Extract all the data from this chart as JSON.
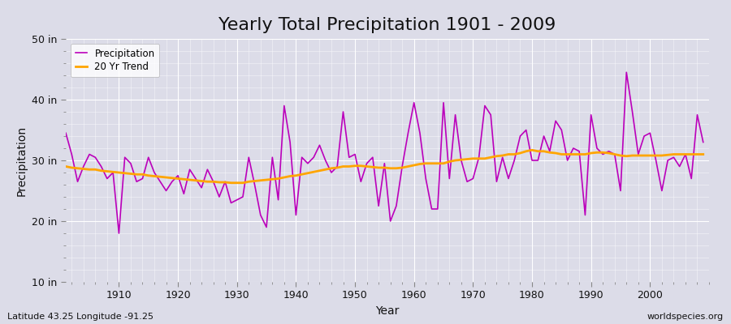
{
  "title": "Yearly Total Precipitation 1901 - 2009",
  "xlabel": "Year",
  "ylabel": "Precipitation",
  "subtitle": "Latitude 43.25 Longitude -91.25",
  "watermark": "worldspecies.org",
  "years": [
    1901,
    1902,
    1903,
    1904,
    1905,
    1906,
    1907,
    1908,
    1909,
    1910,
    1911,
    1912,
    1913,
    1914,
    1915,
    1916,
    1917,
    1918,
    1919,
    1920,
    1921,
    1922,
    1923,
    1924,
    1925,
    1926,
    1927,
    1928,
    1929,
    1930,
    1931,
    1932,
    1933,
    1934,
    1935,
    1936,
    1937,
    1938,
    1939,
    1940,
    1941,
    1942,
    1943,
    1944,
    1945,
    1946,
    1947,
    1948,
    1949,
    1950,
    1951,
    1952,
    1953,
    1954,
    1955,
    1956,
    1957,
    1958,
    1959,
    1960,
    1961,
    1962,
    1963,
    1964,
    1965,
    1966,
    1967,
    1968,
    1969,
    1970,
    1971,
    1972,
    1973,
    1974,
    1975,
    1976,
    1977,
    1978,
    1979,
    1980,
    1981,
    1982,
    1983,
    1984,
    1985,
    1986,
    1987,
    1988,
    1989,
    1990,
    1991,
    1992,
    1993,
    1994,
    1995,
    1996,
    1997,
    1998,
    1999,
    2000,
    2001,
    2002,
    2003,
    2004,
    2005,
    2006,
    2007,
    2008,
    2009
  ],
  "precipitation": [
    34.5,
    31.0,
    26.5,
    29.0,
    31.0,
    30.5,
    29.0,
    27.0,
    28.0,
    18.0,
    30.5,
    29.5,
    26.5,
    27.0,
    30.5,
    28.0,
    26.5,
    25.0,
    26.5,
    27.5,
    24.5,
    28.5,
    27.0,
    25.5,
    28.5,
    26.5,
    24.0,
    26.5,
    23.0,
    23.5,
    24.0,
    30.5,
    26.0,
    21.0,
    19.0,
    30.5,
    23.5,
    39.0,
    33.0,
    21.0,
    30.5,
    29.5,
    30.5,
    32.5,
    30.0,
    28.0,
    29.0,
    38.0,
    30.5,
    31.0,
    26.5,
    29.5,
    30.5,
    22.5,
    29.5,
    20.0,
    22.5,
    29.0,
    34.5,
    39.5,
    34.5,
    27.0,
    22.0,
    22.0,
    39.5,
    27.0,
    37.5,
    30.0,
    26.5,
    27.0,
    30.5,
    39.0,
    37.5,
    26.5,
    30.5,
    27.0,
    30.0,
    34.0,
    35.0,
    30.0,
    30.0,
    34.0,
    31.5,
    36.5,
    35.0,
    30.0,
    32.0,
    31.5,
    21.0,
    37.5,
    32.0,
    31.0,
    31.5,
    31.0,
    25.0,
    44.5,
    38.0,
    31.0,
    34.0,
    34.5,
    30.0,
    25.0,
    30.0,
    30.5,
    29.0,
    31.0,
    27.0,
    37.5,
    33.0
  ],
  "trend": [
    29.0,
    28.8,
    28.7,
    28.6,
    28.5,
    28.5,
    28.3,
    28.2,
    28.1,
    28.0,
    27.9,
    27.8,
    27.7,
    27.7,
    27.5,
    27.4,
    27.3,
    27.2,
    27.1,
    27.0,
    26.9,
    26.8,
    26.7,
    26.6,
    26.5,
    26.5,
    26.4,
    26.4,
    26.3,
    26.3,
    26.3,
    26.5,
    26.6,
    26.7,
    26.8,
    26.9,
    27.0,
    27.2,
    27.4,
    27.5,
    27.7,
    27.9,
    28.1,
    28.3,
    28.5,
    28.7,
    28.8,
    29.0,
    29.0,
    29.1,
    29.1,
    29.0,
    28.9,
    28.8,
    28.8,
    28.7,
    28.7,
    28.8,
    29.0,
    29.2,
    29.4,
    29.5,
    29.5,
    29.5,
    29.5,
    29.8,
    30.0,
    30.1,
    30.2,
    30.3,
    30.3,
    30.3,
    30.5,
    30.7,
    30.8,
    31.0,
    31.0,
    31.2,
    31.5,
    31.7,
    31.5,
    31.5,
    31.3,
    31.2,
    31.0,
    31.0,
    31.0,
    31.0,
    31.0,
    31.2,
    31.3,
    31.3,
    31.2,
    31.0,
    30.8,
    30.7,
    30.8,
    30.8,
    30.8,
    30.8,
    30.8,
    30.8,
    30.9,
    31.0,
    31.0,
    31.0,
    31.0,
    31.0,
    31.0
  ],
  "precip_color": "#bb00bb",
  "trend_color": "#ffa500",
  "bg_color": "#dcdce8",
  "plot_bg_color": "#dcdce8",
  "ylim": [
    10,
    50
  ],
  "yticks": [
    10,
    20,
    30,
    40,
    50
  ],
  "ytick_labels": [
    "10 in",
    "20 in",
    "30 in",
    "40 in",
    "50 in"
  ],
  "xticks": [
    1910,
    1920,
    1930,
    1940,
    1950,
    1960,
    1970,
    1980,
    1990,
    2000
  ],
  "title_fontsize": 16,
  "label_fontsize": 10,
  "tick_fontsize": 9,
  "legend_items": [
    "Precipitation",
    "20 Yr Trend"
  ]
}
